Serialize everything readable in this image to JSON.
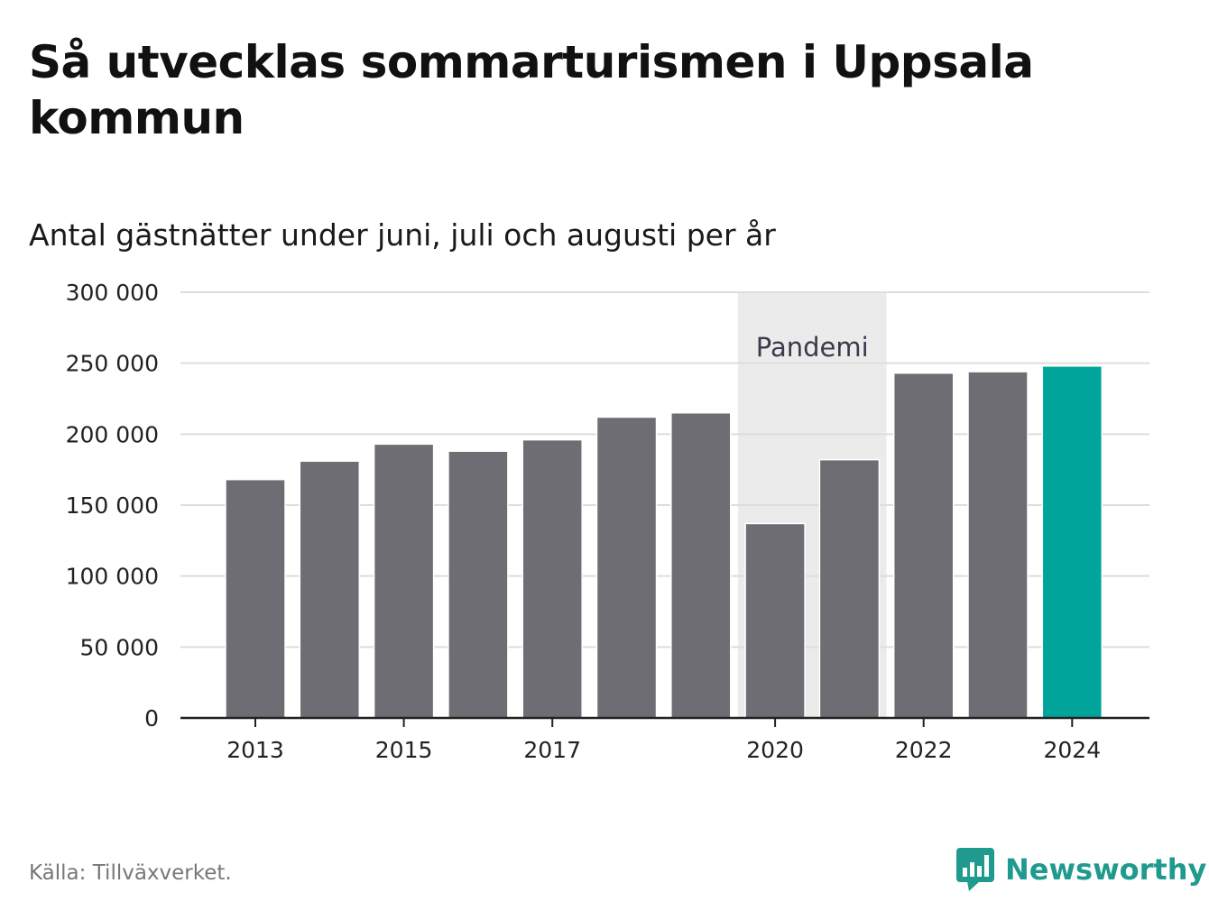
{
  "header": {
    "title": "Så utvecklas sommarturismen i Uppsala kommun",
    "subtitle": "Antal gästnätter under juni, juli och augusti per år"
  },
  "footer": {
    "source": "Källa: Tillväxverket.",
    "brand": "Newsworthy",
    "brand_icon": "bar-chart-speech-bubble-icon"
  },
  "colors": {
    "bar": "#6e6d73",
    "highlight": "#00a49a",
    "pandemic_band": "#ebebeb",
    "grid": "#dddddd",
    "axis": "#222222",
    "brand": "#1f9a8e"
  },
  "chart_data": {
    "type": "bar",
    "title": "Så utvecklas sommarturismen i Uppsala kommun",
    "subtitle": "Antal gästnätter under juni, juli och augusti per år",
    "categories": [
      2013,
      2014,
      2015,
      2016,
      2017,
      2018,
      2019,
      2020,
      2021,
      2022,
      2023,
      2024
    ],
    "values": [
      168000,
      181000,
      193000,
      188000,
      196000,
      212000,
      215000,
      137000,
      182000,
      243000,
      244000,
      248000
    ],
    "highlight_category": 2024,
    "x_tick_labels": [
      "2013",
      "2015",
      "2017",
      "2020",
      "2022",
      "2024"
    ],
    "y_ticks": [
      0,
      50000,
      100000,
      150000,
      200000,
      250000,
      300000
    ],
    "y_tick_labels": [
      "0",
      "50 000",
      "100 000",
      "150 000",
      "200 000",
      "250 000",
      "300 000"
    ],
    "ylim": [
      0,
      300000
    ],
    "grid": true,
    "annotation": {
      "label": "Pandemi",
      "from": 2020,
      "to": 2021
    },
    "xlabel": "",
    "ylabel": ""
  }
}
